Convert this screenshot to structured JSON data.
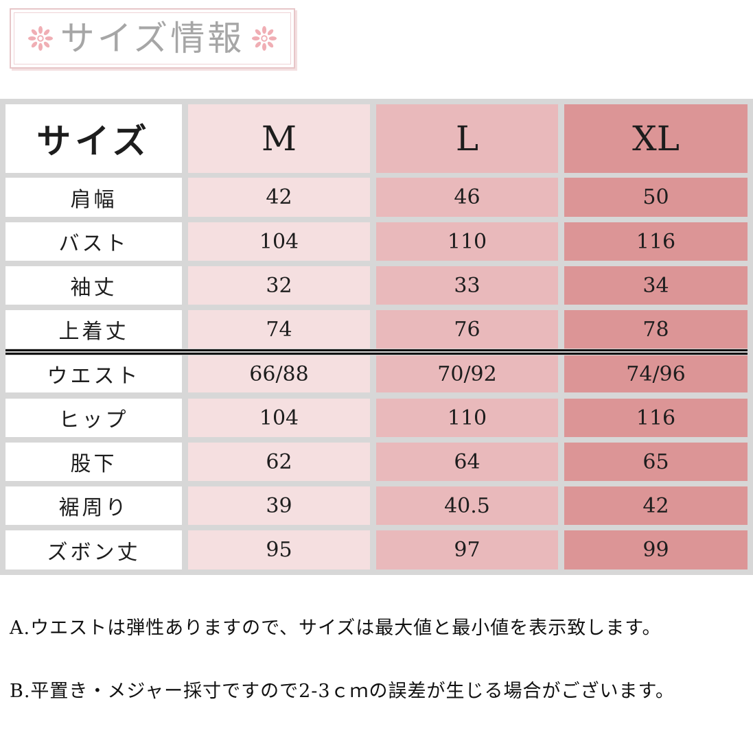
{
  "title": "サイズ情報",
  "header": {
    "label": "サイズ",
    "sizes": [
      "M",
      "L",
      "XL"
    ]
  },
  "rows": [
    {
      "label": "肩幅",
      "values": [
        "42",
        "46",
        "50"
      ]
    },
    {
      "label": "バスト",
      "values": [
        "104",
        "110",
        "116"
      ]
    },
    {
      "label": "袖丈",
      "values": [
        "32",
        "33",
        "34"
      ]
    },
    {
      "label": "上着丈",
      "values": [
        "74",
        "76",
        "78"
      ]
    },
    {
      "label": "ウエスト",
      "values": [
        "66/88",
        "70/92",
        "74/96"
      ]
    },
    {
      "label": "ヒップ",
      "values": [
        "104",
        "110",
        "116"
      ]
    },
    {
      "label": "股下",
      "values": [
        "62",
        "64",
        "65"
      ]
    },
    {
      "label": "裾周り",
      "values": [
        "39",
        "40.5",
        "42"
      ]
    },
    {
      "label": "ズボン丈",
      "values": [
        "95",
        "97",
        "99"
      ]
    }
  ],
  "notes": {
    "a": "A.ウエストは弾性ありますので、サイズは最大値と最小値を表示致します。",
    "b": "B.平置き・メジャー採寸ですので2-3ｃｍの誤差が生じる場合がございます。"
  },
  "colors": {
    "col_m": "#f5dfe0",
    "col_l": "#e9b9bb",
    "col_xl": "#dc9596",
    "title_gray": "#a6a6a6"
  },
  "icons": [
    "flower-icon"
  ]
}
